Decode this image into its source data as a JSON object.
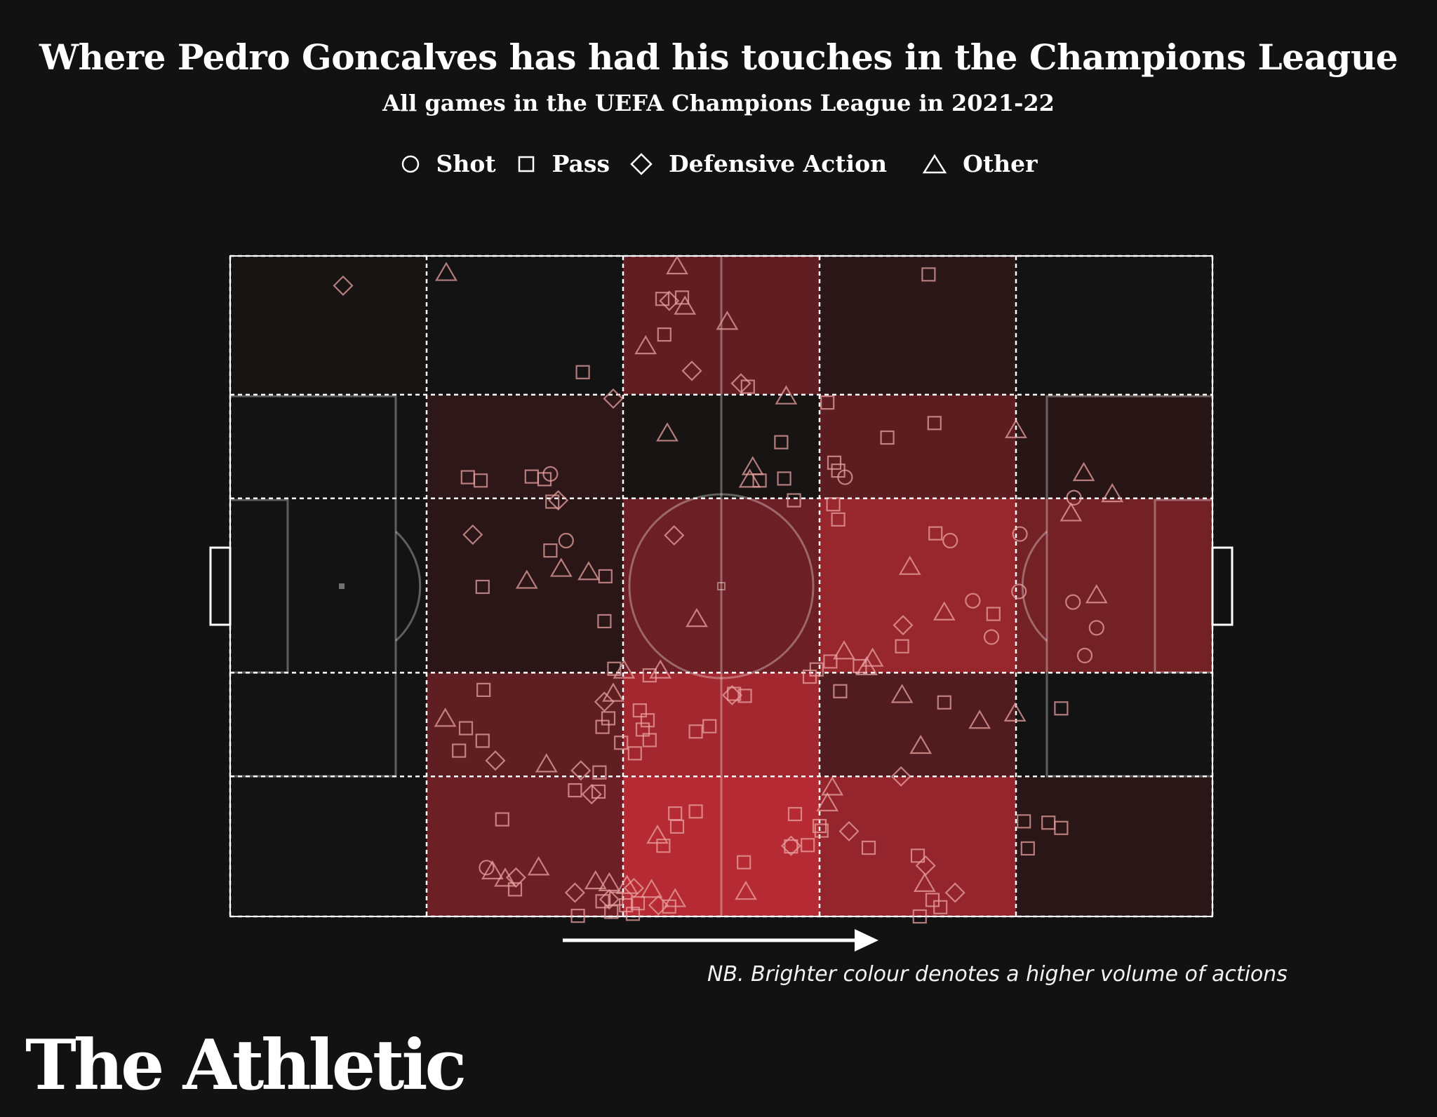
{
  "title": "Where Pedro Goncalves has had his touches in the Champions League",
  "subtitle": "All games in the UEFA Champions League in 2021-22",
  "legend": [
    {
      "shape": "circle",
      "label": "Shot"
    },
    {
      "shape": "square",
      "label": "Pass"
    },
    {
      "shape": "diamond",
      "label": "Defensive Action"
    },
    {
      "shape": "triangle",
      "label": "Other"
    }
  ],
  "note": "NB. Brighter colour denotes a higher volume of actions",
  "logo": "The Athletic",
  "colors": {
    "background": "#121212",
    "low": "#131313",
    "high": "#b52a33",
    "line": "#ffffff",
    "marker": "#e8a0a0"
  },
  "grid_intensity": [
    [
      0.03,
      0.0,
      0.48,
      0.15,
      0.0
    ],
    [
      0.0,
      0.16,
      0.04,
      0.45,
      0.13
    ],
    [
      0.0,
      0.14,
      0.55,
      0.82,
      0.6
    ],
    [
      0.0,
      0.46,
      0.88,
      0.38,
      0.0
    ],
    [
      0.0,
      0.55,
      1.0,
      0.8,
      0.14
    ]
  ],
  "events": [
    {
      "t": "d",
      "x": 11.5,
      "y": 4.5
    },
    {
      "t": "t",
      "x": 22.0,
      "y": 2.5
    },
    {
      "t": "t",
      "x": 45.5,
      "y": 1.5
    },
    {
      "t": "d",
      "x": 44.7,
      "y": 6.8
    },
    {
      "t": "s",
      "x": 44.0,
      "y": 6.5
    },
    {
      "t": "s",
      "x": 46.0,
      "y": 6.3
    },
    {
      "t": "t",
      "x": 46.3,
      "y": 7.6
    },
    {
      "t": "s",
      "x": 44.2,
      "y": 11.9
    },
    {
      "t": "t",
      "x": 42.3,
      "y": 13.6
    },
    {
      "t": "d",
      "x": 47.0,
      "y": 17.4
    },
    {
      "t": "s",
      "x": 35.9,
      "y": 17.6
    },
    {
      "t": "d",
      "x": 39.0,
      "y": 21.6
    },
    {
      "t": "t",
      "x": 50.6,
      "y": 9.9
    },
    {
      "t": "d",
      "x": 52.0,
      "y": 19.3
    },
    {
      "t": "s",
      "x": 52.7,
      "y": 19.8
    },
    {
      "t": "t",
      "x": 56.6,
      "y": 21.2
    },
    {
      "t": "s",
      "x": 60.8,
      "y": 22.2
    },
    {
      "t": "s",
      "x": 66.9,
      "y": 27.5
    },
    {
      "t": "s",
      "x": 71.1,
      "y": 2.8
    },
    {
      "t": "t",
      "x": 44.5,
      "y": 26.8
    },
    {
      "t": "s",
      "x": 32.0,
      "y": 33.8
    },
    {
      "t": "s",
      "x": 30.7,
      "y": 33.4
    },
    {
      "t": "s",
      "x": 24.2,
      "y": 33.5
    },
    {
      "t": "s",
      "x": 25.5,
      "y": 34.0
    },
    {
      "t": "s",
      "x": 56.4,
      "y": 33.7
    },
    {
      "t": "t",
      "x": 53.2,
      "y": 31.9
    },
    {
      "t": "s",
      "x": 53.9,
      "y": 34.0
    },
    {
      "t": "t",
      "x": 52.9,
      "y": 33.8
    },
    {
      "t": "s",
      "x": 61.9,
      "y": 32.5
    },
    {
      "t": "s",
      "x": 61.5,
      "y": 31.3
    },
    {
      "t": "s",
      "x": 56.1,
      "y": 28.2
    },
    {
      "t": "s",
      "x": 71.7,
      "y": 25.3
    },
    {
      "t": "t",
      "x": 80.0,
      "y": 26.3
    },
    {
      "t": "t",
      "x": 86.9,
      "y": 32.8
    },
    {
      "t": "d",
      "x": 33.4,
      "y": 37.0
    },
    {
      "t": "s",
      "x": 32.8,
      "y": 37.2
    },
    {
      "t": "s",
      "x": 57.4,
      "y": 37.0
    },
    {
      "t": "s",
      "x": 61.4,
      "y": 37.6
    },
    {
      "t": "d",
      "x": 24.7,
      "y": 42.2
    },
    {
      "t": "t",
      "x": 30.2,
      "y": 49.1
    },
    {
      "t": "s",
      "x": 25.7,
      "y": 50.1
    },
    {
      "t": "s",
      "x": 32.6,
      "y": 44.6
    },
    {
      "t": "t",
      "x": 33.7,
      "y": 47.3
    },
    {
      "t": "t",
      "x": 36.5,
      "y": 47.8
    },
    {
      "t": "s",
      "x": 38.2,
      "y": 48.5
    },
    {
      "t": "d",
      "x": 45.2,
      "y": 42.3
    },
    {
      "t": "t",
      "x": 47.5,
      "y": 54.9
    },
    {
      "t": "s",
      "x": 38.1,
      "y": 55.3
    },
    {
      "t": "t",
      "x": 69.2,
      "y": 47.0
    },
    {
      "t": "c",
      "x": 73.3,
      "y": 43.1
    },
    {
      "t": "s",
      "x": 71.8,
      "y": 42.0
    },
    {
      "t": "c",
      "x": 75.6,
      "y": 52.2
    },
    {
      "t": "t",
      "x": 72.7,
      "y": 53.9
    },
    {
      "t": "s",
      "x": 77.7,
      "y": 54.2
    },
    {
      "t": "c",
      "x": 77.5,
      "y": 57.7
    },
    {
      "t": "d",
      "x": 68.5,
      "y": 55.9
    },
    {
      "t": "s",
      "x": 61.9,
      "y": 39.9
    },
    {
      "t": "c",
      "x": 80.4,
      "y": 42.1
    },
    {
      "t": "c",
      "x": 80.3,
      "y": 50.8
    },
    {
      "t": "t",
      "x": 85.6,
      "y": 38.9
    },
    {
      "t": "t",
      "x": 89.8,
      "y": 36.0
    },
    {
      "t": "c",
      "x": 85.8,
      "y": 52.4
    },
    {
      "t": "t",
      "x": 88.2,
      "y": 51.3
    },
    {
      "t": "c",
      "x": 88.2,
      "y": 56.3
    },
    {
      "t": "c",
      "x": 87.0,
      "y": 60.5
    },
    {
      "t": "s",
      "x": 68.4,
      "y": 59.1
    },
    {
      "t": "t",
      "x": 65.4,
      "y": 60.9
    },
    {
      "t": "t",
      "x": 62.5,
      "y": 59.8
    },
    {
      "t": "s",
      "x": 64.1,
      "y": 62.1
    },
    {
      "t": "s",
      "x": 59.7,
      "y": 62.6
    },
    {
      "t": "s",
      "x": 61.1,
      "y": 61.4
    },
    {
      "t": "t",
      "x": 64.8,
      "y": 62.2
    },
    {
      "t": "s",
      "x": 59.0,
      "y": 63.7
    },
    {
      "t": "s",
      "x": 25.7,
      "y": 73.4
    },
    {
      "t": "t",
      "x": 39.0,
      "y": 66.2
    },
    {
      "t": "d",
      "x": 38.1,
      "y": 67.5
    },
    {
      "t": "s",
      "x": 38.5,
      "y": 70.0
    },
    {
      "t": "s",
      "x": 41.7,
      "y": 68.8
    },
    {
      "t": "s",
      "x": 42.5,
      "y": 70.3
    },
    {
      "t": "s",
      "x": 42.0,
      "y": 71.7
    },
    {
      "t": "s",
      "x": 42.7,
      "y": 73.3
    },
    {
      "t": "s",
      "x": 39.8,
      "y": 73.7
    },
    {
      "t": "s",
      "x": 41.2,
      "y": 75.3
    },
    {
      "t": "s",
      "x": 47.4,
      "y": 72.0
    },
    {
      "t": "s",
      "x": 48.8,
      "y": 71.2
    },
    {
      "t": "s",
      "x": 51.3,
      "y": 66.3
    },
    {
      "t": "d",
      "x": 51.1,
      "y": 66.5
    },
    {
      "t": "s",
      "x": 52.4,
      "y": 66.6
    },
    {
      "t": "t",
      "x": 40.1,
      "y": 62.7
    },
    {
      "t": "s",
      "x": 39.1,
      "y": 62.5
    },
    {
      "t": "t",
      "x": 43.8,
      "y": 62.7
    },
    {
      "t": "s",
      "x": 42.7,
      "y": 63.5
    },
    {
      "t": "s",
      "x": 25.8,
      "y": 65.7
    },
    {
      "t": "t",
      "x": 21.9,
      "y": 70.0
    },
    {
      "t": "s",
      "x": 24.0,
      "y": 71.5
    },
    {
      "t": "s",
      "x": 37.9,
      "y": 71.3
    },
    {
      "t": "s",
      "x": 23.3,
      "y": 74.9
    },
    {
      "t": "d",
      "x": 27.0,
      "y": 76.4
    },
    {
      "t": "t",
      "x": 32.2,
      "y": 76.9
    },
    {
      "t": "t",
      "x": 70.3,
      "y": 74.1
    },
    {
      "t": "s",
      "x": 62.1,
      "y": 65.9
    },
    {
      "t": "t",
      "x": 68.4,
      "y": 66.4
    },
    {
      "t": "s",
      "x": 72.7,
      "y": 67.6
    },
    {
      "t": "t",
      "x": 76.3,
      "y": 70.3
    },
    {
      "t": "s",
      "x": 84.6,
      "y": 68.5
    },
    {
      "t": "t",
      "x": 79.9,
      "y": 69.2
    },
    {
      "t": "d",
      "x": 35.7,
      "y": 77.9
    },
    {
      "t": "s",
      "x": 37.5,
      "y": 81.1
    },
    {
      "t": "s",
      "x": 35.1,
      "y": 80.9
    },
    {
      "t": "s",
      "x": 37.6,
      "y": 78.2
    },
    {
      "t": "s",
      "x": 27.7,
      "y": 85.3
    },
    {
      "t": "d",
      "x": 36.8,
      "y": 81.5
    },
    {
      "t": "s",
      "x": 45.3,
      "y": 84.4
    },
    {
      "t": "s",
      "x": 47.4,
      "y": 84.1
    },
    {
      "t": "t",
      "x": 43.5,
      "y": 87.7
    },
    {
      "t": "s",
      "x": 44.1,
      "y": 89.3
    },
    {
      "t": "d",
      "x": 68.3,
      "y": 78.8
    },
    {
      "t": "t",
      "x": 61.3,
      "y": 80.4
    },
    {
      "t": "t",
      "x": 60.8,
      "y": 82.8
    },
    {
      "t": "d",
      "x": 63.0,
      "y": 87.1
    },
    {
      "t": "s",
      "x": 65.0,
      "y": 89.6
    },
    {
      "t": "d",
      "x": 57.1,
      "y": 89.3
    },
    {
      "t": "s",
      "x": 52.3,
      "y": 91.8
    },
    {
      "t": "s",
      "x": 70.0,
      "y": 90.8
    },
    {
      "t": "d",
      "x": 70.8,
      "y": 92.3
    },
    {
      "t": "t",
      "x": 70.7,
      "y": 95.0
    },
    {
      "t": "d",
      "x": 73.8,
      "y": 96.4
    },
    {
      "t": "s",
      "x": 71.5,
      "y": 97.5
    },
    {
      "t": "s",
      "x": 72.3,
      "y": 98.6
    },
    {
      "t": "s",
      "x": 70.2,
      "y": 100.0
    },
    {
      "t": "s",
      "x": 60.0,
      "y": 86.3
    },
    {
      "t": "s",
      "x": 60.2,
      "y": 87.0
    },
    {
      "t": "s",
      "x": 58.8,
      "y": 89.2
    },
    {
      "t": "s",
      "x": 45.5,
      "y": 86.4
    },
    {
      "t": "s",
      "x": 57.5,
      "y": 84.5
    },
    {
      "t": "s",
      "x": 57.1,
      "y": 89.4
    },
    {
      "t": "t",
      "x": 52.5,
      "y": 96.2
    },
    {
      "t": "t",
      "x": 45.3,
      "y": 97.3
    },
    {
      "t": "d",
      "x": 43.6,
      "y": 98.3
    },
    {
      "t": "s",
      "x": 41.5,
      "y": 98.0
    },
    {
      "t": "d",
      "x": 38.6,
      "y": 97.4
    },
    {
      "t": "t",
      "x": 42.9,
      "y": 95.9
    },
    {
      "t": "t",
      "x": 40.4,
      "y": 95.3
    },
    {
      "t": "d",
      "x": 41.1,
      "y": 95.7
    },
    {
      "t": "d",
      "x": 35.1,
      "y": 96.4
    },
    {
      "t": "t",
      "x": 37.2,
      "y": 94.6
    },
    {
      "t": "t",
      "x": 38.6,
      "y": 94.9
    },
    {
      "t": "s",
      "x": 37.9,
      "y": 97.7
    },
    {
      "t": "s",
      "x": 44.7,
      "y": 98.5
    },
    {
      "t": "s",
      "x": 35.4,
      "y": 99.9
    },
    {
      "t": "s",
      "x": 39.3,
      "y": 97.3
    },
    {
      "t": "s",
      "x": 40.3,
      "y": 98.3
    },
    {
      "t": "s",
      "x": 38.8,
      "y": 99.3
    },
    {
      "t": "s",
      "x": 41.0,
      "y": 99.6
    },
    {
      "t": "t",
      "x": 31.4,
      "y": 92.5
    },
    {
      "t": "c",
      "x": 26.1,
      "y": 92.6
    },
    {
      "t": "d",
      "x": 29.1,
      "y": 94.1
    },
    {
      "t": "t",
      "x": 28.0,
      "y": 94.2
    },
    {
      "t": "s",
      "x": 29.0,
      "y": 95.9
    },
    {
      "t": "t",
      "x": 26.7,
      "y": 93.1
    },
    {
      "t": "s",
      "x": 80.8,
      "y": 85.6
    },
    {
      "t": "s",
      "x": 84.6,
      "y": 86.6
    },
    {
      "t": "s",
      "x": 83.3,
      "y": 85.8
    },
    {
      "t": "s",
      "x": 81.2,
      "y": 89.7
    },
    {
      "t": "c",
      "x": 32.6,
      "y": 33.0
    },
    {
      "t": "c",
      "x": 34.2,
      "y": 43.1
    },
    {
      "t": "c",
      "x": 62.6,
      "y": 33.5
    },
    {
      "t": "c",
      "x": 85.9,
      "y": 36.6
    }
  ]
}
